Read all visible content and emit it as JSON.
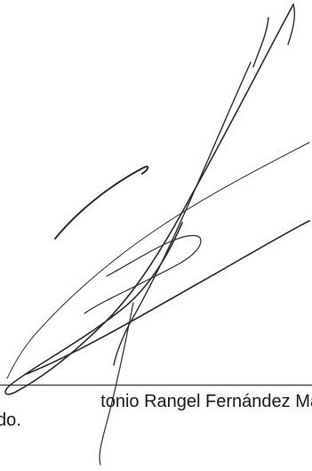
{
  "document": {
    "signer_name": "tonio Rangel Fernández Ma",
    "signer_suffix": "do.",
    "ink_color": "#2b2b2b",
    "signature_type": "handwritten-signature"
  }
}
